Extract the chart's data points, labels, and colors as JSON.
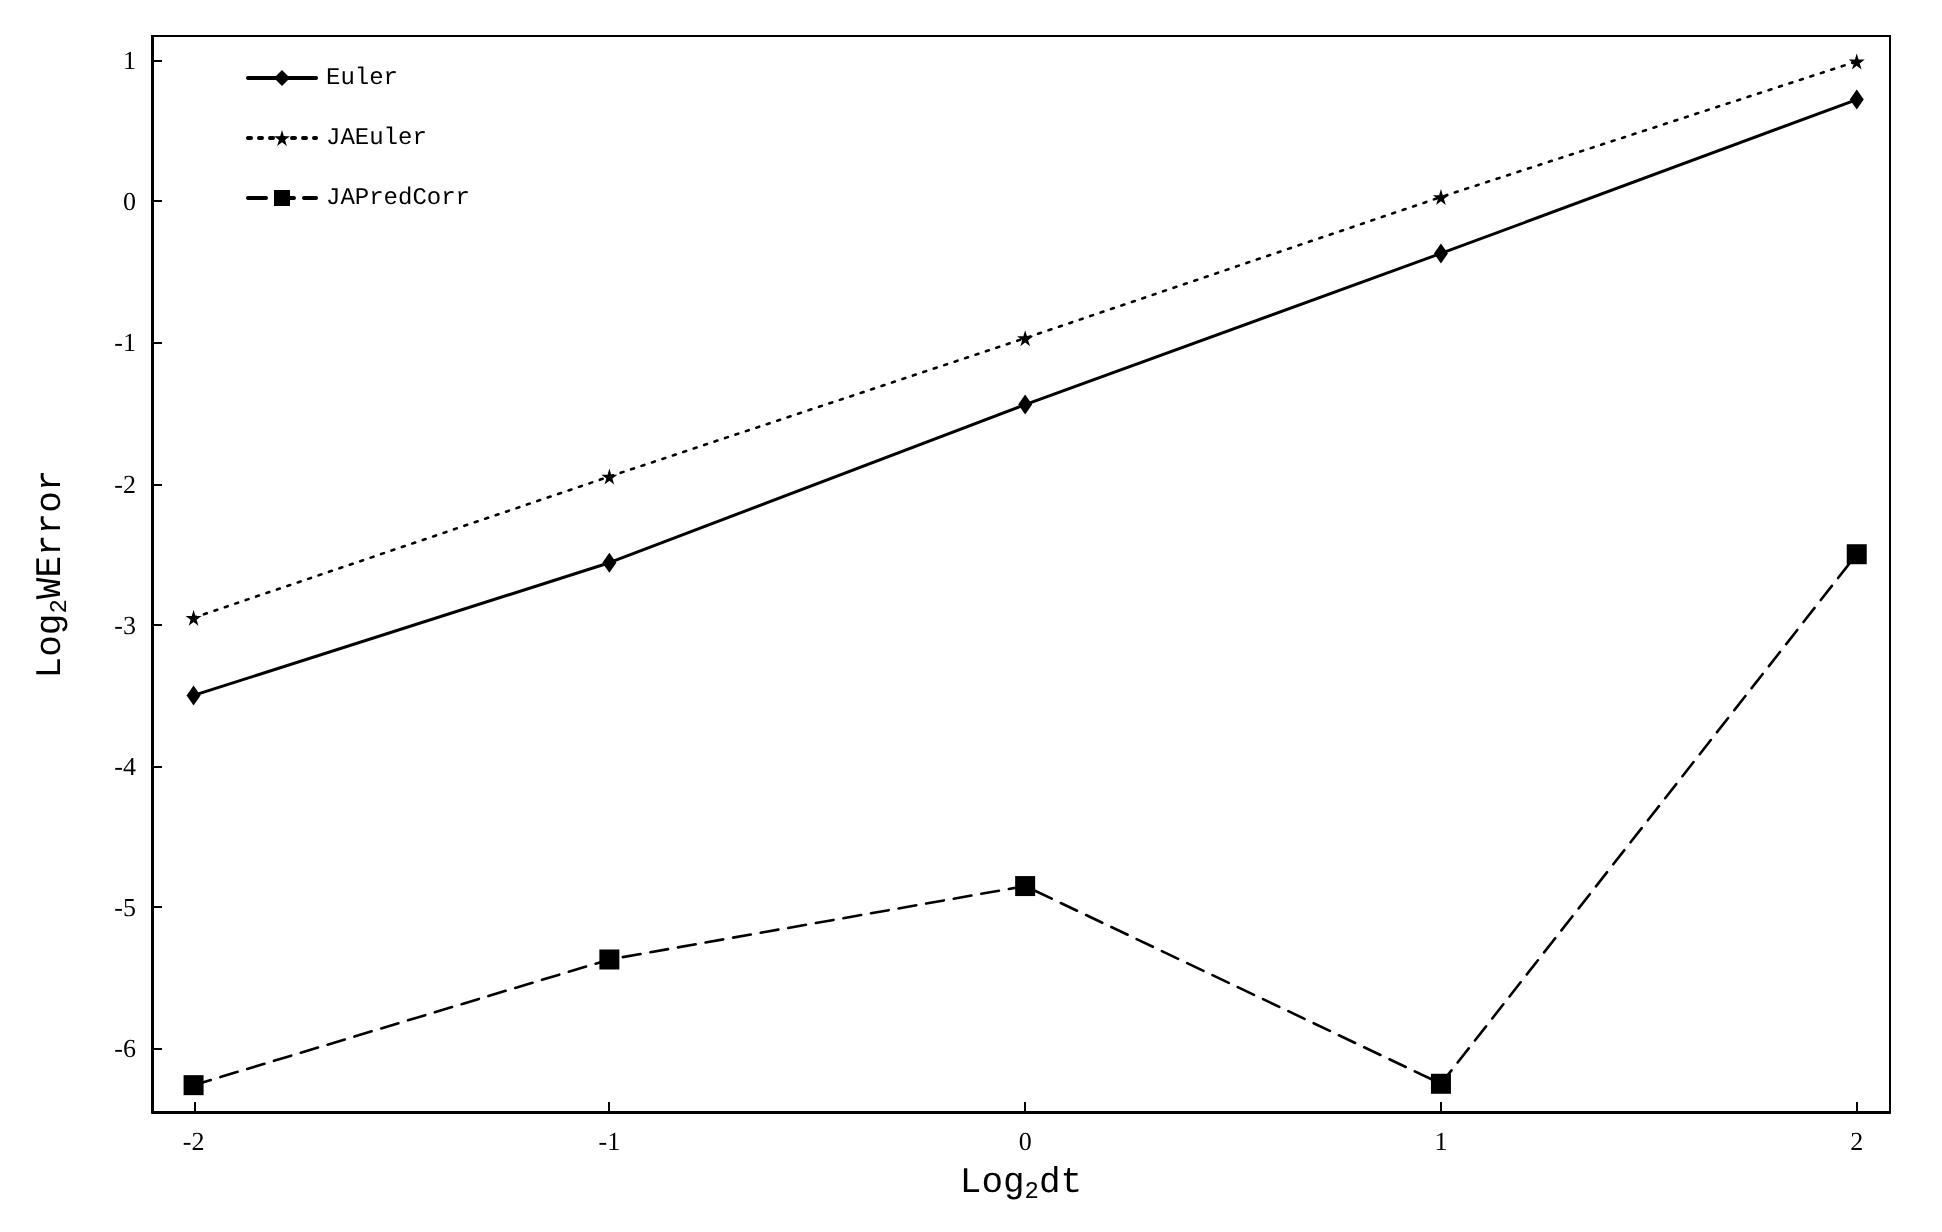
{
  "chart_data": {
    "type": "line",
    "xlabel": "Log$_{2}$dt",
    "ylabel": "Log$_{2}$WError",
    "x": [
      -2,
      -1,
      0,
      1,
      2
    ],
    "series": [
      {
        "name": "Euler",
        "color": "#000000",
        "marker": "diamond",
        "line_style": "solid",
        "values": [
          -3.5,
          -2.56,
          -1.44,
          -0.37,
          0.72
        ]
      },
      {
        "name": "JAEuler",
        "color": "#000000",
        "marker": "star",
        "line_style": "dotted",
        "values": [
          -2.95,
          -1.95,
          -0.97,
          0.03,
          0.99
        ]
      },
      {
        "name": "JAPredCorr",
        "color": "#000000",
        "marker": "square",
        "line_style": "dashed",
        "values": [
          -6.26,
          -5.37,
          -4.85,
          -6.25,
          -2.5
        ]
      }
    ],
    "xlim": [
      -2.1,
      2.08
    ],
    "xticks": [
      -2,
      -1,
      0,
      1,
      2
    ],
    "ylim": [
      -6.45,
      1.17
    ],
    "yticks": [
      -6,
      -5,
      -4,
      -3,
      -2,
      -1,
      0,
      1
    ],
    "grid": false,
    "legend": "top left"
  }
}
